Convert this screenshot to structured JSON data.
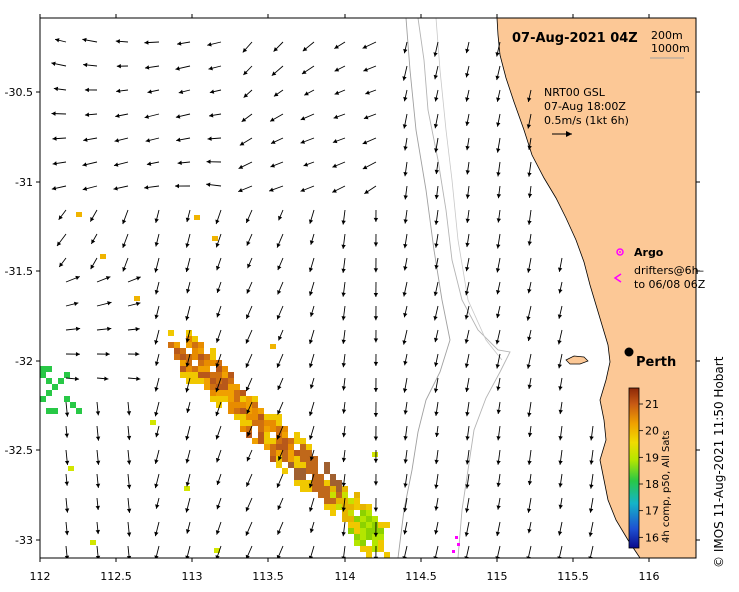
{
  "title": "07-Aug-2021 04Z",
  "depth_contours": [
    "200m",
    "1000m"
  ],
  "current_legend": {
    "line1": "NRT00 GSL",
    "line2": "07-Aug 18:00Z",
    "line3": "0.5m/s (1kt 6h)"
  },
  "argo_label": "Argo",
  "drifters_line1": "drifters@6h–",
  "drifters_line2": "to 06/08 06Z",
  "city": "Perth",
  "colorbar": {
    "label": "4h comp, p50, All Sats",
    "ticks": [
      "21",
      "20",
      "19",
      "18",
      "17",
      "16"
    ],
    "min": 15.6,
    "max": 21.6
  },
  "axes": {
    "x_ticks": [
      "112",
      "112.5",
      "113",
      "113.5",
      "114",
      "114.5",
      "115",
      "115.5",
      "116"
    ],
    "y_ticks": [
      "-30.5",
      "-31",
      "-31.5",
      "-32",
      "-32.5",
      "-33"
    ],
    "lon_range": [
      112,
      116.3
    ],
    "lat_range": [
      -33.1,
      -30.0
    ]
  },
  "credit": "© IMOS 11-Aug-2021 11:50 Hobart",
  "colors": {
    "land": "#fcc896",
    "ocean": "#ffffff",
    "argo": "#ff00ff"
  }
}
